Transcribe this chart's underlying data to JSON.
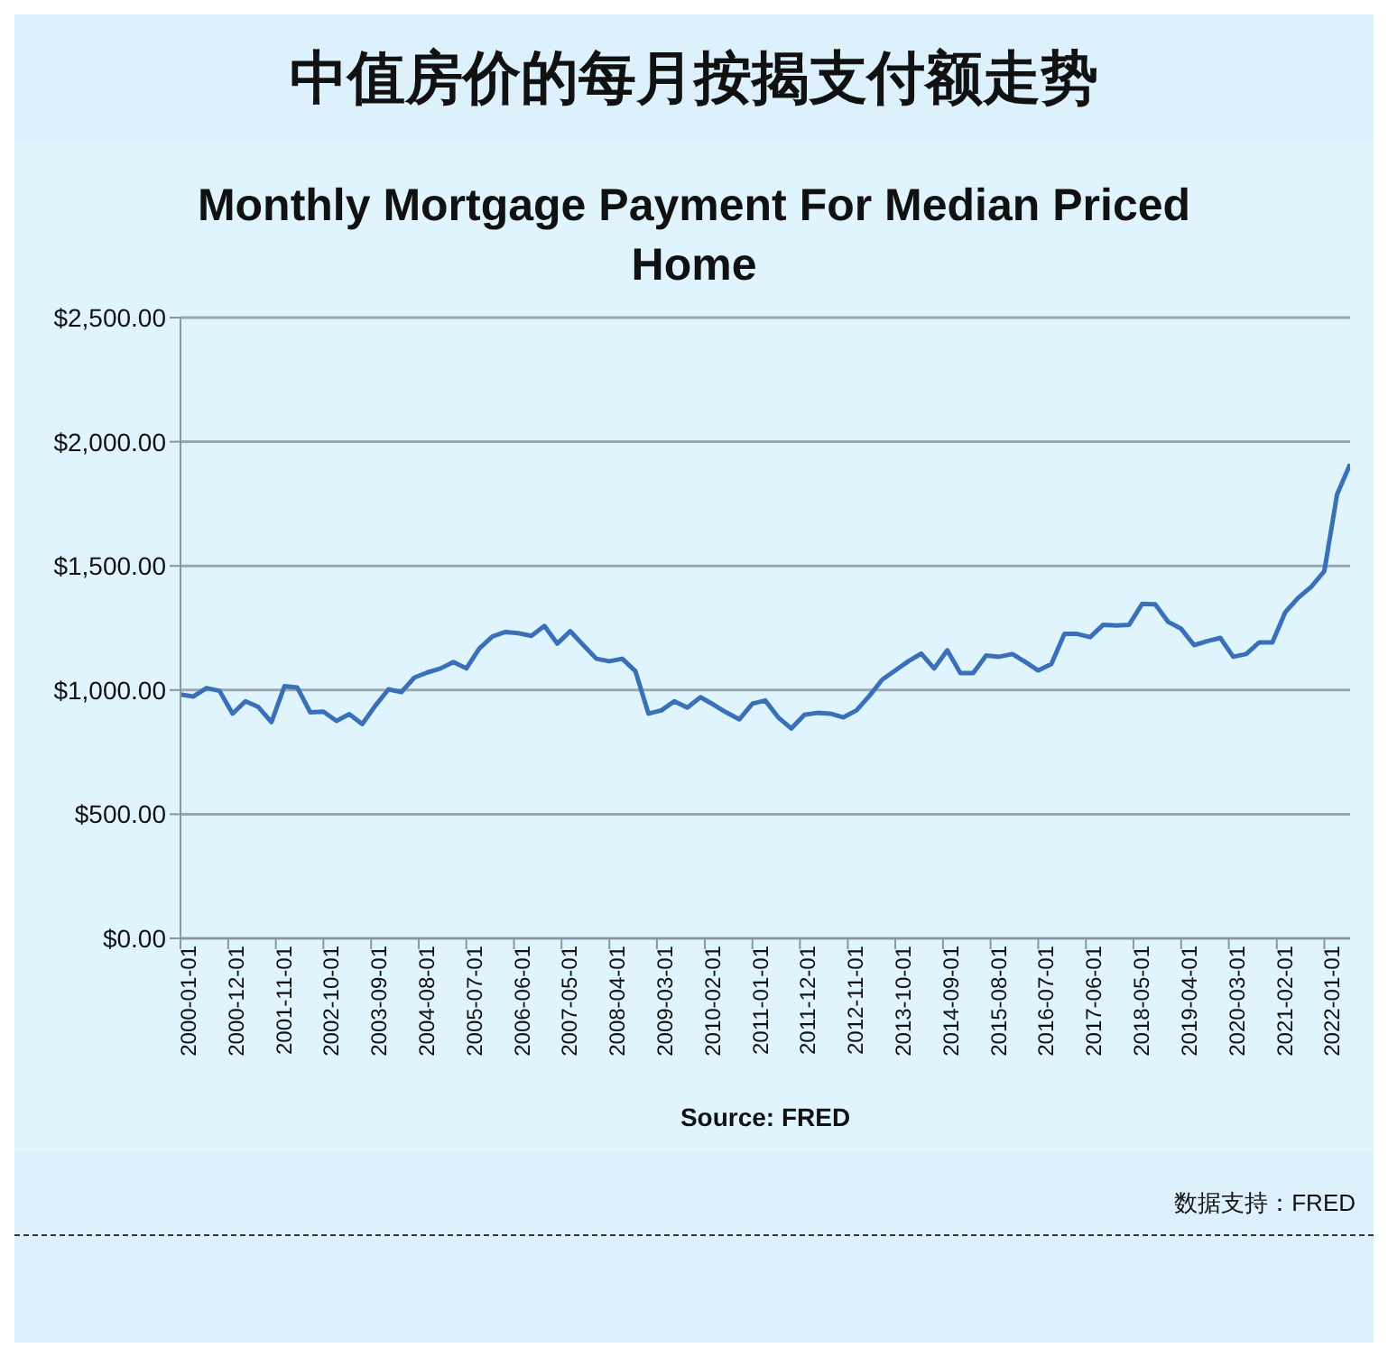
{
  "chart_data": {
    "type": "line",
    "title": "中值房价的每月按揭支付额走势",
    "subtitle": "Monthly Mortgage Payment For Median Priced Home",
    "xlabel": "Source: FRED",
    "annotations": [
      "数据支持：FRED"
    ],
    "x": [
      "2000-01-01",
      "2000-04-01",
      "2000-07-01",
      "2000-10-01",
      "2001-01-01",
      "2001-04-01",
      "2001-07-01",
      "2001-10-01",
      "2002-01-01",
      "2002-04-01",
      "2002-07-01",
      "2002-10-01",
      "2003-01-01",
      "2003-04-01",
      "2003-07-01",
      "2003-10-01",
      "2004-01-01",
      "2004-04-01",
      "2004-07-01",
      "2004-10-01",
      "2005-01-01",
      "2005-04-01",
      "2005-07-01",
      "2005-10-01",
      "2006-01-01",
      "2006-04-01",
      "2006-07-01",
      "2006-10-01",
      "2007-01-01",
      "2007-04-01",
      "2007-07-01",
      "2007-10-01",
      "2008-01-01",
      "2008-04-01",
      "2008-07-01",
      "2008-10-01",
      "2009-01-01",
      "2009-04-01",
      "2009-07-01",
      "2009-10-01",
      "2010-01-01",
      "2010-04-01",
      "2010-07-01",
      "2010-10-01",
      "2011-01-01",
      "2011-04-01",
      "2011-07-01",
      "2011-10-01",
      "2012-01-01",
      "2012-04-01",
      "2012-07-01",
      "2012-10-01",
      "2013-01-01",
      "2013-04-01",
      "2013-07-01",
      "2013-10-01",
      "2014-01-01",
      "2014-04-01",
      "2014-07-01",
      "2014-10-01",
      "2015-01-01",
      "2015-04-01",
      "2015-07-01",
      "2015-10-01",
      "2016-01-01",
      "2016-04-01",
      "2016-07-01",
      "2016-10-01",
      "2017-01-01",
      "2017-04-01",
      "2017-07-01",
      "2017-10-01",
      "2018-01-01",
      "2018-04-01",
      "2018-07-01",
      "2018-10-01",
      "2019-01-01",
      "2019-04-01",
      "2019-07-01",
      "2019-10-01",
      "2020-01-01",
      "2020-04-01",
      "2020-07-01",
      "2020-10-01",
      "2021-01-01",
      "2021-04-01",
      "2021-07-01",
      "2021-10-01",
      "2022-01-01",
      "2022-04-01",
      "2022-07-01"
    ],
    "series": [
      {
        "color": "#3a70b8",
        "values": [
          982,
          974,
          1008,
          997,
          905,
          955,
          932,
          871,
          1016,
          1010,
          910,
          913,
          876,
          903,
          863,
          937,
          1003,
          992,
          1050,
          1071,
          1087,
          1113,
          1087,
          1168,
          1216,
          1234,
          1229,
          1218,
          1258,
          1187,
          1237,
          1181,
          1126,
          1116,
          1126,
          1076,
          905,
          918,
          955,
          929,
          971,
          942,
          910,
          882,
          945,
          958,
          890,
          845,
          900,
          908,
          905,
          890,
          918,
          976,
          1042,
          1079,
          1116,
          1147,
          1087,
          1160,
          1068,
          1068,
          1139,
          1134,
          1145,
          1113,
          1079,
          1105,
          1226,
          1226,
          1213,
          1263,
          1260,
          1263,
          1347,
          1345,
          1274,
          1247,
          1181,
          1197,
          1210,
          1134,
          1145,
          1192,
          1192,
          1313,
          1371,
          1416,
          1479,
          1789,
          1910
        ]
      }
    ],
    "xlim": [
      "2000-01-01",
      "2022-07-01"
    ],
    "xticks": [
      "2000-01-01",
      "2000-12-01",
      "2001-11-01",
      "2002-10-01",
      "2003-09-01",
      "2004-08-01",
      "2005-07-01",
      "2006-06-01",
      "2007-05-01",
      "2008-04-01",
      "2009-03-01",
      "2010-02-01",
      "2011-01-01",
      "2011-12-01",
      "2012-11-01",
      "2013-10-01",
      "2014-09-01",
      "2015-08-01",
      "2016-07-01",
      "2017-06-01",
      "2018-05-01",
      "2019-04-01",
      "2020-03-01",
      "2021-02-01",
      "2022-01-01"
    ],
    "ylim": [
      0,
      2500
    ],
    "yticks": [
      {
        "value": 0,
        "label": "$0.00"
      },
      {
        "value": 500,
        "label": "$500.00"
      },
      {
        "value": 1000,
        "label": "$1,000.00"
      },
      {
        "value": 1500,
        "label": "$1,500.00"
      },
      {
        "value": 2000,
        "label": "$2,000.00"
      },
      {
        "value": 2500,
        "label": "$2,500.00"
      }
    ],
    "grid": "y",
    "legend": false,
    "marker": "none",
    "line_style": "solid"
  }
}
